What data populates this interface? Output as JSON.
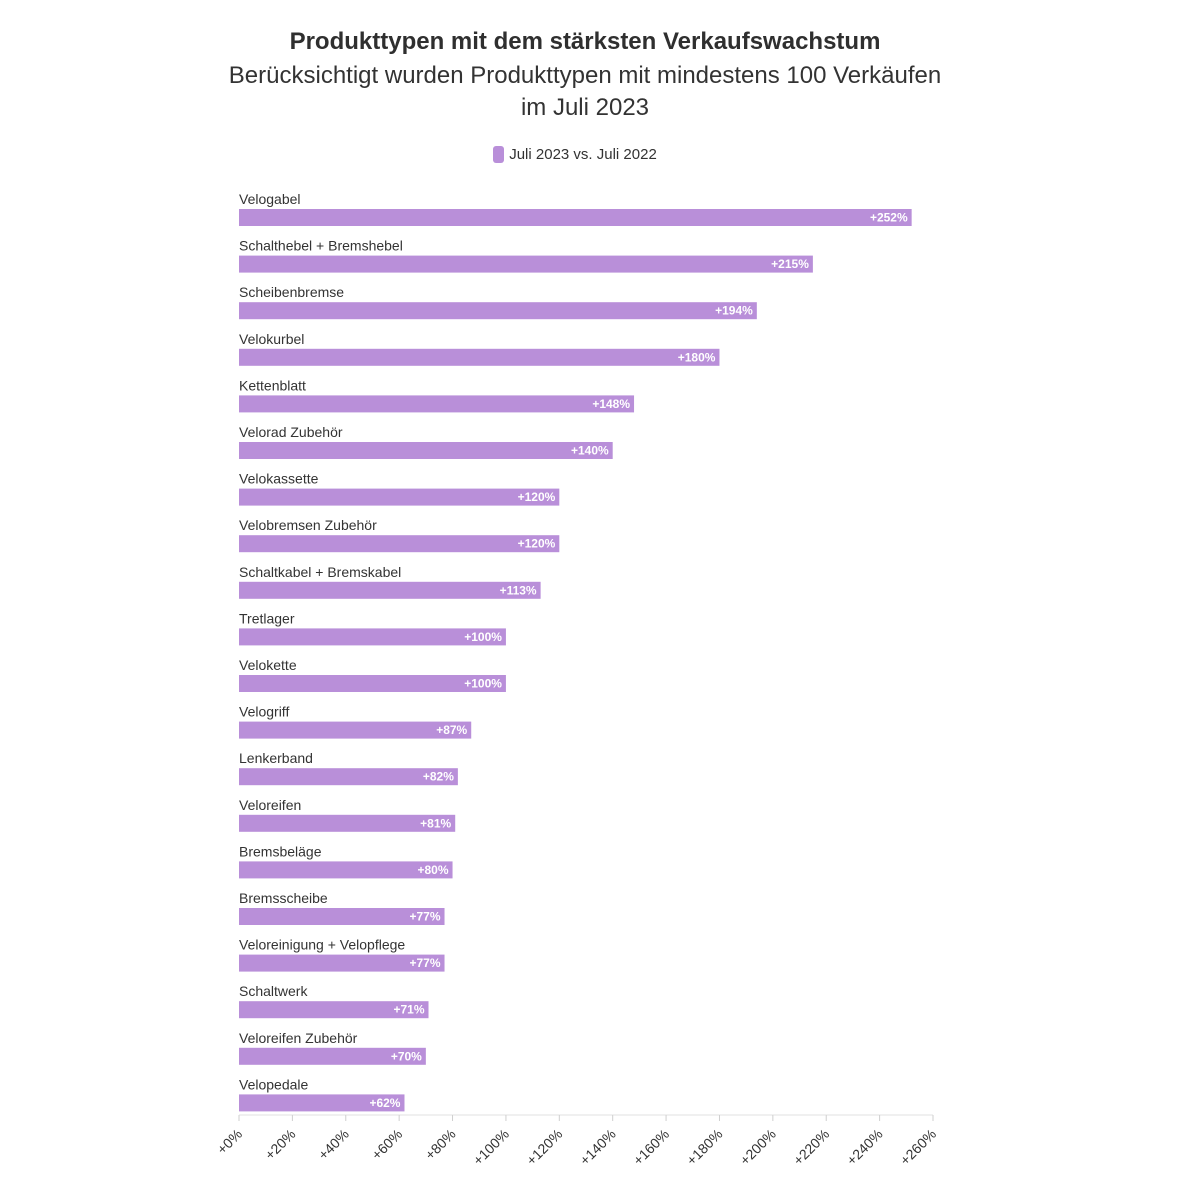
{
  "chart_data": {
    "type": "bar",
    "orientation": "horizontal",
    "title": "Produkttypen mit dem stärksten Verkaufswachstum",
    "subtitle_line1": "Berücksichtigt wurden Produkttypen mit mindestens 100 Verkäufen",
    "subtitle_line2": "im Juli 2023",
    "legend": {
      "placement": "top-center",
      "entries": [
        {
          "name": "Juli 2023 vs. Juli 2022",
          "color": "#b98fd9"
        }
      ]
    },
    "bar_color": "#b98fd9",
    "categories": [
      "Velogabel",
      "Schalthebel + Bremshebel",
      "Scheibenbremse",
      "Velokurbel",
      "Kettenblatt",
      "Velorad Zubehör",
      "Velokassette",
      "Velobremsen Zubehör",
      "Schaltkabel + Bremskabel",
      "Tretlager",
      "Velokette",
      "Velogriff",
      "Lenkerband",
      "Veloreifen",
      "Bremsbeläge",
      "Bremsscheibe",
      "Veloreinigung + Velopflege",
      "Schaltwerk",
      "Veloreifen Zubehör",
      "Velopedale"
    ],
    "series": [
      {
        "name": "Juli 2023 vs. Juli 2022",
        "values": [
          252,
          215,
          194,
          180,
          148,
          140,
          120,
          120,
          113,
          100,
          100,
          87,
          82,
          81,
          80,
          77,
          77,
          71,
          70,
          62
        ]
      }
    ],
    "value_labels": [
      "+252%",
      "+215%",
      "+194%",
      "+180%",
      "+148%",
      "+140%",
      "+120%",
      "+120%",
      "+113%",
      "+100%",
      "+100%",
      "+87%",
      "+82%",
      "+81%",
      "+80%",
      "+77%",
      "+77%",
      "+71%",
      "+70%",
      "+62%"
    ],
    "xlim": [
      0,
      260
    ],
    "x_ticks": [
      0,
      20,
      40,
      60,
      80,
      100,
      120,
      140,
      160,
      180,
      200,
      220,
      240,
      260
    ],
    "x_tick_labels": [
      "+0%",
      "+20%",
      "+40%",
      "+60%",
      "+80%",
      "+100%",
      "+120%",
      "+140%",
      "+160%",
      "+180%",
      "+200%",
      "+220%",
      "+240%",
      "+260%"
    ],
    "xlabel": "",
    "ylabel": "",
    "grid": false
  }
}
